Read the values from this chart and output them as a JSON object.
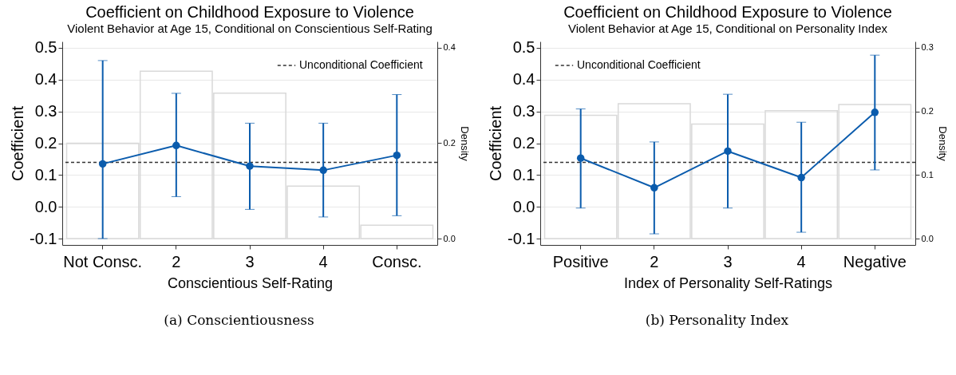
{
  "chart_data": [
    {
      "type": "line",
      "title": "Coefficient on Childhood Exposure to Violence",
      "subtitle": "Violent Behavior at Age 15, Conditional on Conscientious Self-Rating",
      "xlabel": "Conscientious Self-Rating",
      "ylabel": "Coefficient",
      "y2label": "Density",
      "categories": [
        "Not Consc.",
        "2",
        "3",
        "4",
        "Consc."
      ],
      "series": [
        {
          "type": "bar",
          "axis": "y2",
          "color": "#d9d9d9",
          "values": [
            0.2,
            0.351,
            0.305,
            0.11,
            0.028
          ]
        },
        {
          "color": "#0b5cad",
          "values": [
            0.135,
            0.193,
            0.128,
            0.115,
            0.162
          ],
          "errors": [
            [
              -0.1,
              0.46
            ],
            [
              0.032,
              0.357
            ],
            [
              -0.008,
              0.263
            ],
            [
              -0.032,
              0.263
            ],
            [
              -0.028,
              0.353
            ]
          ]
        }
      ],
      "ylim": [
        -0.12,
        0.52
      ],
      "yticks": [
        -0.1,
        {
          "value": 0,
          "label": "0.0"
        },
        0.1,
        0.2,
        0.3,
        0.4,
        0.5
      ],
      "y2lim": [
        -0.0133,
        0.4133
      ],
      "y2ticks": [
        {
          "value": 0,
          "label": "0.0"
        },
        0.2,
        0.4
      ],
      "ref_lines": [
        {
          "axis": "y",
          "value": 0.14,
          "label": "Unconditional Coefficient",
          "color": "#333333",
          "line_style": "dashed"
        }
      ],
      "grid": "y",
      "legend": "top right",
      "marker": "circle",
      "annotations": [
        "(a) Conscientiousness"
      ]
    },
    {
      "type": "line",
      "title": "Coefficient on Childhood Exposure to Violence",
      "subtitle": "Violent Behavior at Age 15, Conditional on Personality Index",
      "xlabel": "Index of Personality Self-Ratings",
      "ylabel": "Coefficient",
      "y2label": "Density",
      "categories": [
        "Positive",
        "2",
        "3",
        "4",
        "Negative"
      ],
      "series": [
        {
          "type": "bar",
          "axis": "y2",
          "color": "#d9d9d9",
          "values": [
            0.194,
            0.212,
            0.18,
            0.201,
            0.211
          ]
        },
        {
          "color": "#0b5cad",
          "values": [
            0.153,
            0.06,
            0.175,
            0.092,
            0.297
          ],
          "errors": [
            [
              -0.004,
              0.308
            ],
            [
              -0.085,
              0.204
            ],
            [
              -0.004,
              0.354
            ],
            [
              -0.08,
              0.266
            ],
            [
              0.116,
              0.477
            ]
          ]
        }
      ],
      "ylim": [
        -0.12,
        0.52
      ],
      "yticks": [
        -0.1,
        {
          "value": 0,
          "label": "0.0"
        },
        0.1,
        0.2,
        0.3,
        0.4,
        0.5
      ],
      "y2lim": [
        -0.01,
        0.31
      ],
      "y2ticks": [
        {
          "value": 0,
          "label": "0.0"
        },
        0.1,
        0.2,
        0.3
      ],
      "ref_lines": [
        {
          "axis": "y",
          "value": 0.14,
          "label": "Unconditional Coefficient",
          "color": "#333333",
          "line_style": "dashed"
        }
      ],
      "grid": "y",
      "legend": "top left",
      "marker": "circle",
      "annotations": [
        "(b) Personality Index"
      ]
    }
  ]
}
